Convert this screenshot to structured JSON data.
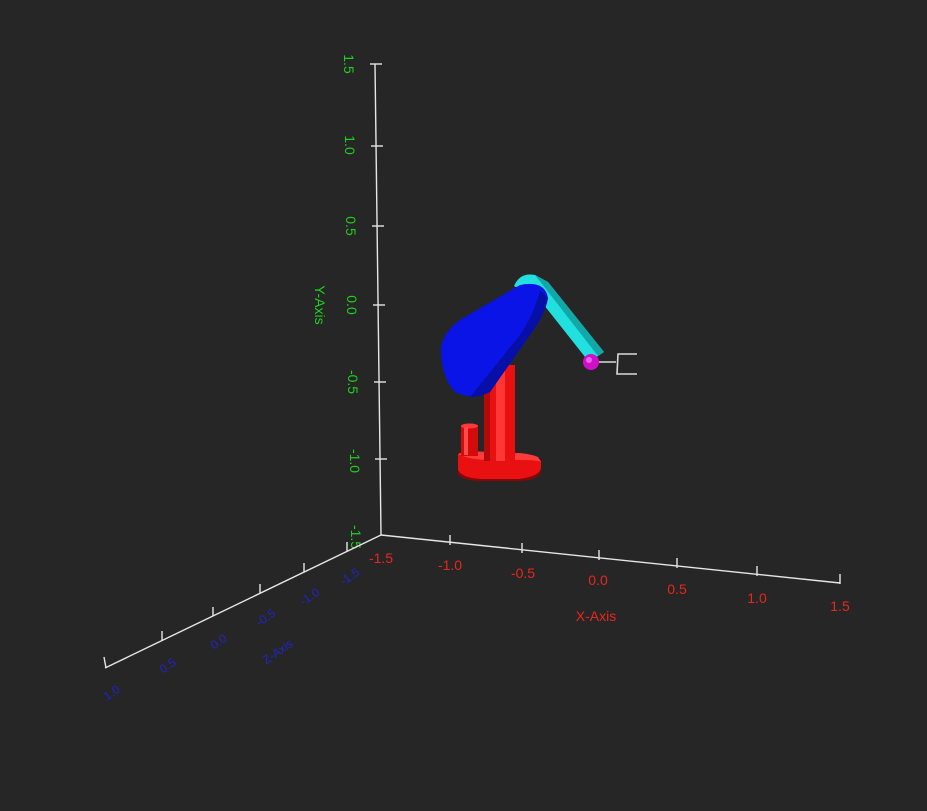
{
  "viewport": {
    "background": "#262626",
    "axis_line_color": "#e6e6e6"
  },
  "axes": {
    "x": {
      "label": "X-Axis",
      "color": "#e8261e",
      "ticks": [
        "-1.5",
        "-1.0",
        "-0.5",
        "0.0",
        "0.5",
        "1.0",
        "1.5"
      ]
    },
    "y": {
      "label": "Y-Axis",
      "color": "#1fd01f",
      "ticks": [
        "1.5",
        "1.0",
        "0.5",
        "0.0",
        "-0.5",
        "-1.0",
        "-1.5"
      ]
    },
    "z": {
      "label": "Z-Axis",
      "color": "#2323c8",
      "ticks": [
        "-1.5",
        "-1.0",
        "-0.5",
        "0.0",
        "0.5",
        "1.0",
        "1.5"
      ]
    }
  },
  "robot": {
    "base_color": "#e81010",
    "upper_arm_color": "#0a14e6",
    "forearm_color": "#22e0e0",
    "wrist_color": "#d010c8",
    "gripper_color": "#d8d8d8"
  }
}
